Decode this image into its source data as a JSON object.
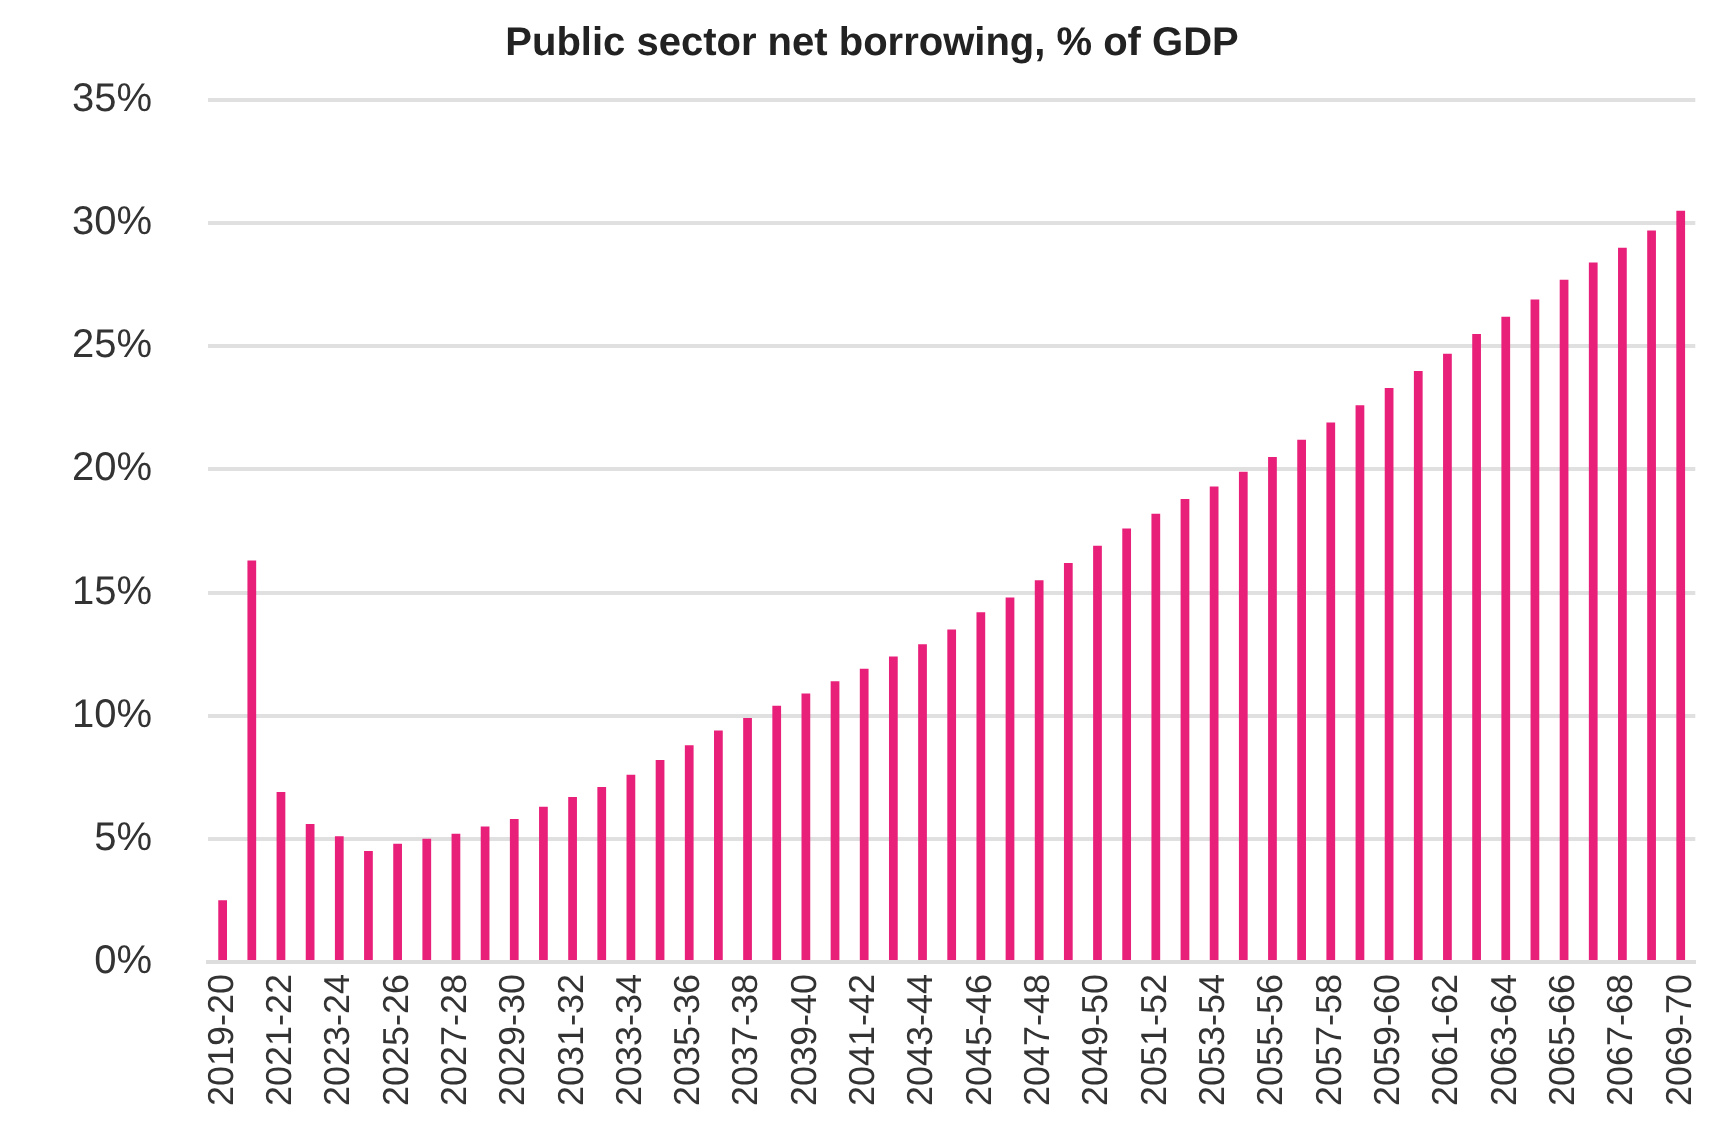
{
  "chart_data": {
    "type": "bar",
    "title": "Public sector net borrowing, % of GDP",
    "categories": [
      "2019-20",
      null,
      "2021-22",
      null,
      "2023-24",
      null,
      "2025-26",
      null,
      "2027-28",
      null,
      "2029-30",
      null,
      "2031-32",
      null,
      "2033-34",
      null,
      "2035-36",
      null,
      "2037-38",
      null,
      "2039-40",
      null,
      "2041-42",
      null,
      "2043-44",
      null,
      "2045-46",
      null,
      "2047-48",
      null,
      "2049-50",
      null,
      "2051-52",
      null,
      "2053-54",
      null,
      "2055-56",
      null,
      "2057-58",
      null,
      "2059-60",
      null,
      "2061-62",
      null,
      "2063-64",
      null,
      "2065-66",
      null,
      "2067-68",
      null,
      "2069-70"
    ],
    "values": [
      2.5,
      16.3,
      6.9,
      5.6,
      5.1,
      4.5,
      4.8,
      5.0,
      5.2,
      5.5,
      5.8,
      6.3,
      6.7,
      7.1,
      7.6,
      8.2,
      8.8,
      9.4,
      9.9,
      10.4,
      10.9,
      11.4,
      11.9,
      12.4,
      12.9,
      13.5,
      14.2,
      14.8,
      15.5,
      16.2,
      16.9,
      17.6,
      18.2,
      18.8,
      19.3,
      19.9,
      20.5,
      21.2,
      21.9,
      22.6,
      23.3,
      24.0,
      24.7,
      25.5,
      26.2,
      26.9,
      27.7,
      28.4,
      29.0,
      29.7,
      30.5
    ],
    "color": "#e8207a",
    "ylim": [
      0,
      35
    ],
    "yticks": [
      {
        "value": 0,
        "label": "0%"
      },
      {
        "value": 5,
        "label": "5%"
      },
      {
        "value": 10,
        "label": "10%"
      },
      {
        "value": 15,
        "label": "15%"
      },
      {
        "value": 20,
        "label": "20%"
      },
      {
        "value": 25,
        "label": "25%"
      },
      {
        "value": 30,
        "label": "30%"
      },
      {
        "value": 35,
        "label": "35%"
      }
    ],
    "grid": "y",
    "legend": false
  }
}
